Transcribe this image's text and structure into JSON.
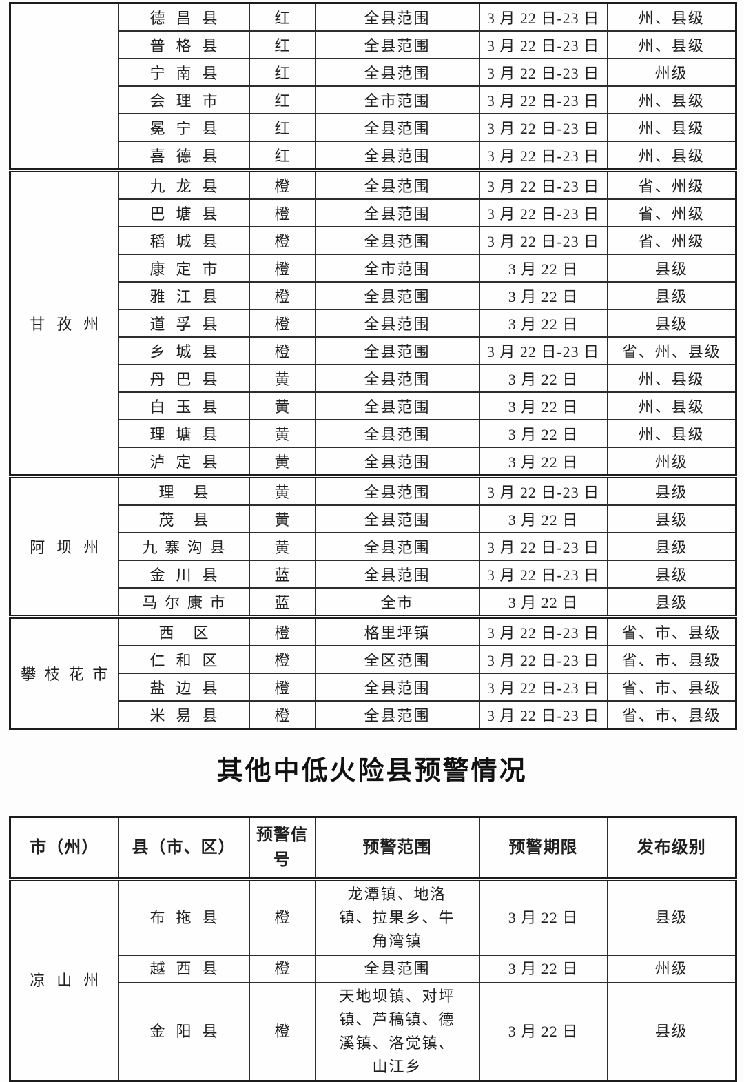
{
  "section_title": "其他中低火险县预警情况",
  "table1": {
    "groups": [
      {
        "region": "",
        "rows": [
          {
            "county": "德昌县",
            "signal": "红",
            "scope": "全县范围",
            "period": "3 月 22 日-23 日",
            "level": "州、县级"
          },
          {
            "county": "普格县",
            "signal": "红",
            "scope": "全县范围",
            "period": "3 月 22 日-23 日",
            "level": "州、县级"
          },
          {
            "county": "宁南县",
            "signal": "红",
            "scope": "全县范围",
            "period": "3 月 22 日-23 日",
            "level": "州级"
          },
          {
            "county": "会理市",
            "signal": "红",
            "scope": "全市范围",
            "period": "3 月 22 日-23 日",
            "level": "州、县级"
          },
          {
            "county": "冕宁县",
            "signal": "红",
            "scope": "全县范围",
            "period": "3 月 22 日-23 日",
            "level": "州、县级"
          },
          {
            "county": "喜德县",
            "signal": "红",
            "scope": "全县范围",
            "period": "3 月 22 日-23 日",
            "level": "州、县级"
          }
        ]
      },
      {
        "region": "甘孜州",
        "rows": [
          {
            "county": "九龙县",
            "signal": "橙",
            "scope": "全县范围",
            "period": "3 月 22 日-23 日",
            "level": "省、州级"
          },
          {
            "county": "巴塘县",
            "signal": "橙",
            "scope": "全县范围",
            "period": "3 月 22 日-23 日",
            "level": "省、州级"
          },
          {
            "county": "稻城县",
            "signal": "橙",
            "scope": "全县范围",
            "period": "3 月 22 日-23 日",
            "level": "省、州级"
          },
          {
            "county": "康定市",
            "signal": "橙",
            "scope": "全市范围",
            "period": "3 月 22 日",
            "level": "县级"
          },
          {
            "county": "雅江县",
            "signal": "橙",
            "scope": "全县范围",
            "period": "3 月 22 日",
            "level": "县级"
          },
          {
            "county": "道孚县",
            "signal": "橙",
            "scope": "全县范围",
            "period": "3 月 22 日",
            "level": "县级"
          },
          {
            "county": "乡城县",
            "signal": "橙",
            "scope": "全县范围",
            "period": "3 月 22 日-23 日",
            "level": "省、州、县级"
          },
          {
            "county": "丹巴县",
            "signal": "黄",
            "scope": "全县范围",
            "period": "3 月 22 日",
            "level": "州、县级"
          },
          {
            "county": "白玉县",
            "signal": "黄",
            "scope": "全县范围",
            "period": "3 月 22 日",
            "level": "州、县级"
          },
          {
            "county": "理塘县",
            "signal": "黄",
            "scope": "全县范围",
            "period": "3 月 22 日",
            "level": "州、县级"
          },
          {
            "county": "泸定县",
            "signal": "黄",
            "scope": "全县范围",
            "period": "3 月 22 日",
            "level": "州级"
          }
        ]
      },
      {
        "region": "阿坝州",
        "rows": [
          {
            "county": "理县",
            "signal": "黄",
            "scope": "全县范围",
            "period": "3 月 22 日-23 日",
            "level": "县级"
          },
          {
            "county": "茂县",
            "signal": "黄",
            "scope": "全县范围",
            "period": "3 月 22 日",
            "level": "县级"
          },
          {
            "county": "九寨沟县",
            "signal": "黄",
            "scope": "全县范围",
            "period": "3 月 22 日-23 日",
            "level": "县级"
          },
          {
            "county": "金川县",
            "signal": "蓝",
            "scope": "全县范围",
            "period": "3 月 22 日-23 日",
            "level": "县级"
          },
          {
            "county": "马尔康市",
            "signal": "蓝",
            "scope": "全市",
            "period": "3 月 22 日",
            "level": "县级"
          }
        ]
      },
      {
        "region": "攀枝花市",
        "rows": [
          {
            "county": "西区",
            "signal": "橙",
            "scope": "格里坪镇",
            "period": "3 月 22 日-23 日",
            "level": "省、市、县级"
          },
          {
            "county": "仁和区",
            "signal": "橙",
            "scope": "全区范围",
            "period": "3 月 22 日-23 日",
            "level": "省、市、县级"
          },
          {
            "county": "盐边县",
            "signal": "橙",
            "scope": "全县范围",
            "period": "3 月 22 日-23 日",
            "level": "省、市、县级"
          },
          {
            "county": "米易县",
            "signal": "橙",
            "scope": "全县范围",
            "period": "3 月 22 日-23 日",
            "level": "省、市、县级"
          }
        ]
      }
    ]
  },
  "table2": {
    "headers": [
      "市（州）",
      "县（市、区）",
      "预警信号",
      "预警范围",
      "预警期限",
      "发布级别"
    ],
    "groups": [
      {
        "region": "凉山州",
        "rows": [
          {
            "county": "布拖县",
            "signal": "橙",
            "scope": "龙潭镇、地洛镇、拉果乡、牛角湾镇",
            "period": "3 月 22 日",
            "level": "县级"
          },
          {
            "county": "越西县",
            "signal": "橙",
            "scope": "全县范围",
            "period": "3 月 22 日",
            "level": "州级"
          },
          {
            "county": "金阳县",
            "signal": "橙",
            "scope": "天地坝镇、对坪镇、芦稿镇、德溪镇、洛觉镇、山江乡",
            "period": "3 月 22 日",
            "level": "县级"
          }
        ]
      }
    ]
  }
}
